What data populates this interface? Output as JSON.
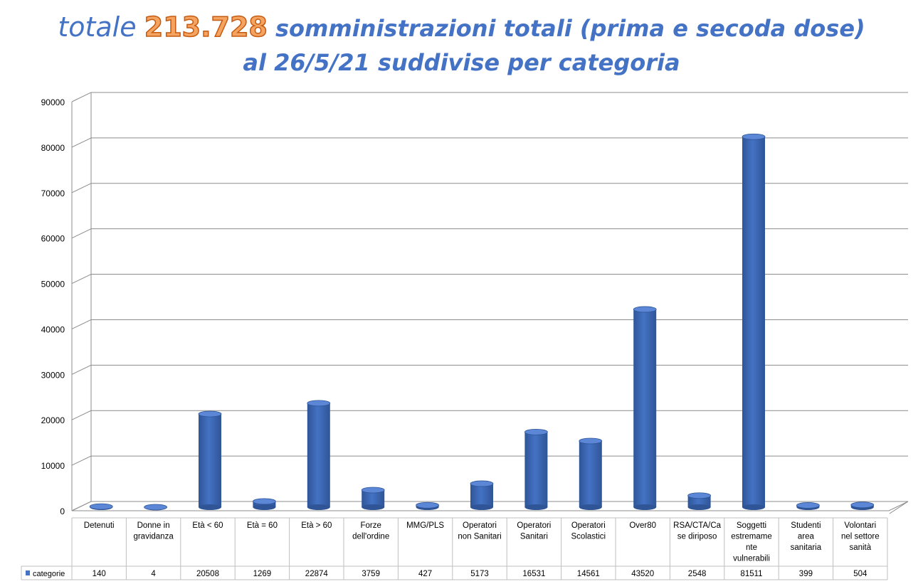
{
  "title": {
    "prefix": "totale",
    "total": "213.728",
    "suffix": "somministrazioni totali (prima e secoda dose)",
    "line2": "al 26/5/21 suddivise per categoria"
  },
  "chart_data": {
    "type": "bar",
    "categories": [
      [
        "Detenuti"
      ],
      [
        "Donne in",
        "gravidanza"
      ],
      [
        "Età < 60"
      ],
      [
        "Età = 60"
      ],
      [
        "Età > 60"
      ],
      [
        "Forze",
        "dell'ordine"
      ],
      [
        "MMG/PLS"
      ],
      [
        "Operatori",
        "non Sanitari"
      ],
      [
        "Operatori",
        "Sanitari"
      ],
      [
        "Operatori",
        "Scolastici"
      ],
      [
        "Over80"
      ],
      [
        "RSA/CTA/Ca",
        "se diriposo"
      ],
      [
        "Soggetti",
        "estremame",
        "nte",
        "vulnerabili"
      ],
      [
        "Studenti",
        "area",
        "sanitaria"
      ],
      [
        "Volontari",
        "nel settore",
        "sanità"
      ]
    ],
    "series": [
      {
        "name": "categorie",
        "values": [
          140,
          4,
          20508,
          1269,
          22874,
          3759,
          427,
          5173,
          16531,
          14561,
          43520,
          2548,
          81511,
          399,
          504
        ]
      }
    ],
    "yticks": [
      "0",
      "10000",
      "20000",
      "30000",
      "40000",
      "50000",
      "60000",
      "70000",
      "80000",
      "90000"
    ],
    "ylim": [
      0,
      90000
    ],
    "grid": true,
    "legend": "data-table",
    "bar_color": "#4472C4"
  }
}
